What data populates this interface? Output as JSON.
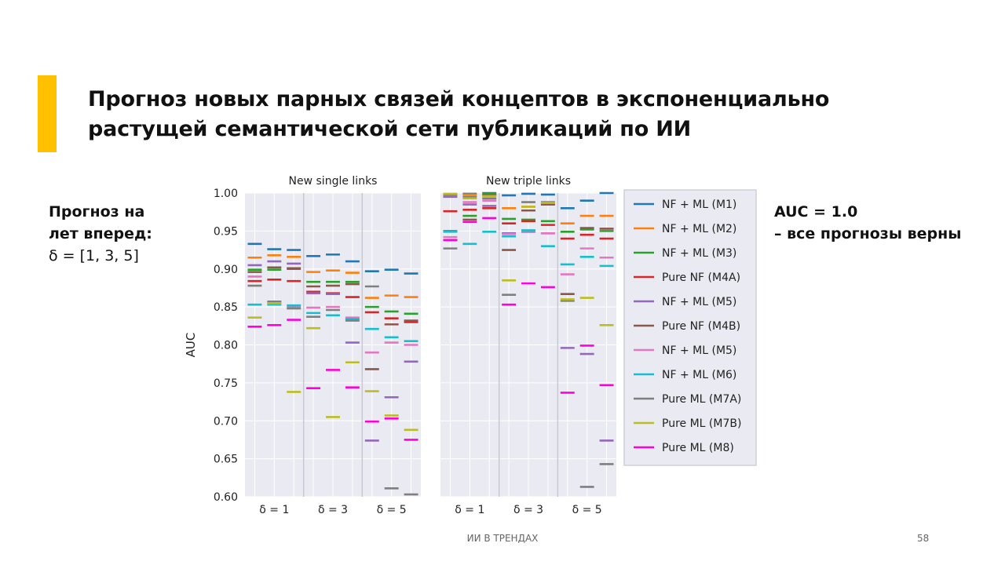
{
  "slide": {
    "title_line1": "Прогноз новых парных связей концептов в экспоненциально",
    "title_line2": "растущей семантической сети публикаций по ИИ",
    "left_line1": "Прогноз на",
    "left_line2": "лет вперед:",
    "left_line3": "δ = [1, 3, 5]",
    "right_line1": "AUC = 1.0",
    "right_line2": "– все прогнозы верны",
    "footer": "ИИ В ТРЕНДАХ",
    "page_number": "58",
    "accent_color": "#ffc000"
  },
  "chart_data": {
    "type": "scatter",
    "ylabel": "AUC",
    "ylim": [
      0.6,
      1.0
    ],
    "yticks": [
      "1.00",
      "0.95",
      "0.90",
      "0.85",
      "0.80",
      "0.75",
      "0.70",
      "0.65",
      "0.60"
    ],
    "grid": true,
    "legend_position": "right",
    "groups": [
      "δ = 1",
      "δ = 3",
      "δ = 5"
    ],
    "series": [
      {
        "name": "NF + ML (M1)",
        "color": "#1f77b4"
      },
      {
        "name": "NF + ML (M2)",
        "color": "#ff7f0e"
      },
      {
        "name": "NF + ML (M3)",
        "color": "#2ca02c"
      },
      {
        "name": "Pure NF (M4A)",
        "color": "#d62728"
      },
      {
        "name": "NF + ML (M5)",
        "color": "#9467bd"
      },
      {
        "name": "Pure NF (M4B)",
        "color": "#8c564b"
      },
      {
        "name": "NF + ML (M5)",
        "color": "#e377c2"
      },
      {
        "name": "NF + ML (M6)",
        "color": "#17becf"
      },
      {
        "name": "Pure ML (M7A)",
        "color": "#7f7f7f"
      },
      {
        "name": "Pure ML (M7B)",
        "color": "#bcbd22"
      },
      {
        "name": "Pure ML (M8)",
        "color": "#ff00dd"
      }
    ],
    "panels": [
      {
        "title": "New single links",
        "values": [
          [
            [
              0.933,
              0.926,
              0.925
            ],
            [
              0.917,
              0.919,
              0.91
            ],
            [
              0.897,
              0.899,
              0.894
            ]
          ],
          [
            [
              0.915,
              0.918,
              0.916
            ],
            [
              0.896,
              0.898,
              0.895
            ],
            [
              0.862,
              0.865,
              0.863
            ]
          ],
          [
            [
              0.899,
              0.899,
              0.9
            ],
            [
              0.883,
              0.883,
              0.883
            ],
            [
              0.85,
              0.844,
              0.841
            ]
          ],
          [
            [
              0.884,
              0.886,
              0.884
            ],
            [
              0.87,
              0.868,
              0.863
            ],
            [
              0.843,
              0.835,
              0.83
            ]
          ],
          [
            [
              0.905,
              0.91,
              0.907
            ],
            [
              0.868,
              0.867,
              0.803
            ],
            [
              0.674,
              0.731,
              0.778
            ]
          ],
          [
            [
              0.896,
              0.902,
              0.901
            ],
            [
              0.877,
              0.878,
              0.88
            ],
            [
              0.768,
              0.827,
              0.832
            ]
          ],
          [
            [
              0.89,
              0.855,
              0.85
            ],
            [
              0.849,
              0.85,
              0.836
            ],
            [
              0.79,
              0.803,
              0.8
            ]
          ],
          [
            [
              0.853,
              0.853,
              0.852
            ],
            [
              0.842,
              0.839,
              0.834
            ],
            [
              0.821,
              0.81,
              0.805
            ]
          ],
          [
            [
              0.878,
              0.857,
              0.848
            ],
            [
              0.837,
              0.846,
              0.832
            ],
            [
              0.877,
              0.611,
              0.603
            ]
          ],
          [
            [
              0.836,
              0.855,
              0.738
            ],
            [
              0.822,
              0.705,
              0.777
            ],
            [
              0.739,
              0.707,
              0.688
            ]
          ],
          [
            [
              0.824,
              0.826,
              0.833
            ],
            [
              0.743,
              0.767,
              0.744
            ],
            [
              0.699,
              0.703,
              0.675
            ]
          ]
        ]
      },
      {
        "title": "New triple links",
        "values": [
          [
            [
              0.998,
              0.999,
              1.0
            ],
            [
              0.997,
              0.999,
              0.998
            ],
            [
              0.98,
              0.99,
              1.0
            ]
          ],
          [
            [
              0.996,
              0.998,
              0.998
            ],
            [
              0.98,
              0.982,
              0.985
            ],
            [
              0.96,
              0.97,
              0.97
            ]
          ],
          [
            [
              0.95,
              0.97,
              0.999
            ],
            [
              0.966,
              0.965,
              0.963
            ],
            [
              0.949,
              0.952,
              0.95
            ]
          ],
          [
            [
              0.976,
              0.978,
              0.98
            ],
            [
              0.96,
              0.963,
              0.958
            ],
            [
              0.94,
              0.945,
              0.94
            ]
          ],
          [
            [
              0.995,
              0.985,
              0.983
            ],
            [
              0.947,
              0.949,
              0.947
            ],
            [
              0.796,
              0.788,
              0.674
            ]
          ],
          [
            [
              0.938,
              0.965,
              0.997
            ],
            [
              0.925,
              0.977,
              0.985
            ],
            [
              0.867,
              0.954,
              0.953
            ]
          ],
          [
            [
              0.942,
              0.988,
              0.99
            ],
            [
              0.946,
              0.95,
              0.947
            ],
            [
              0.893,
              0.927,
              0.915
            ]
          ],
          [
            [
              0.949,
              0.933,
              0.949
            ],
            [
              0.943,
              0.951,
              0.93
            ],
            [
              0.906,
              0.916,
              0.904
            ]
          ],
          [
            [
              0.927,
              0.995,
              0.993
            ],
            [
              0.866,
              0.988,
              0.988
            ],
            [
              0.858,
              0.613,
              0.643
            ]
          ],
          [
            [
              0.999,
              0.993,
              0.996
            ],
            [
              0.885,
              0.982,
              0.987
            ],
            [
              0.86,
              0.862,
              0.826
            ]
          ],
          [
            [
              0.938,
              0.962,
              0.967
            ],
            [
              0.853,
              0.881,
              0.876
            ],
            [
              0.737,
              0.799,
              0.747
            ]
          ]
        ]
      }
    ]
  }
}
